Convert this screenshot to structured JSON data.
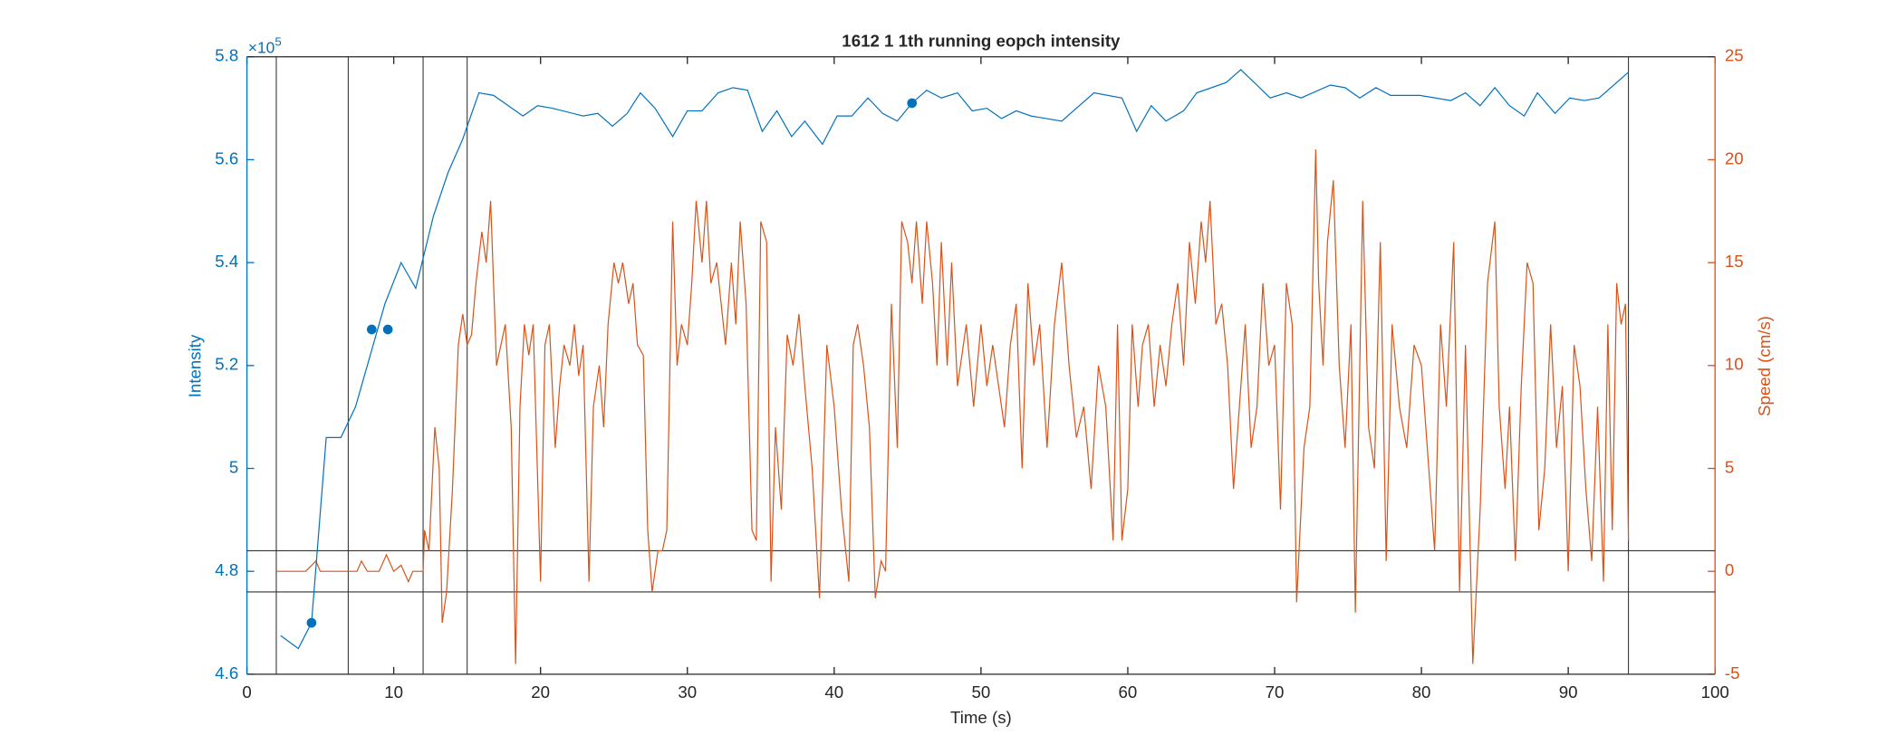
{
  "chart_data": {
    "type": "line",
    "title": "1612 1 1th running eopch intensity",
    "xlabel": "Time (s)",
    "ylabel": "Intensity",
    "y2label": "Speed (cm/s)",
    "y_scale_label": {
      "base": "×10",
      "power": "5"
    },
    "xlim": [
      0,
      100
    ],
    "xticks": [
      0,
      10,
      20,
      30,
      40,
      50,
      60,
      70,
      80,
      90,
      100
    ],
    "ylim": [
      4.6,
      5.8
    ],
    "yticks": [
      4.6,
      4.8,
      5,
      5.2,
      5.4,
      5.6,
      5.8
    ],
    "y2lim": [
      -5,
      25
    ],
    "y2ticks": [
      -5,
      0,
      5,
      10,
      15,
      20,
      25
    ],
    "y_color": "#0072BD",
    "y2_color": "#D95319",
    "vlines": [
      2.0,
      6.9,
      12.0,
      15.0,
      94.1
    ],
    "hlines_y2": [
      1,
      -1
    ],
    "series": [
      {
        "color": "#D95319",
        "axis": "y2",
        "x": [
          2,
          4,
          4.7,
          5,
          7.5,
          7.8,
          8.2,
          9,
          9.5,
          10,
          10.5,
          11,
          11.3,
          12,
          12.1,
          12.4,
          12.8,
          13.1,
          13.3,
          13.6,
          14,
          14.4,
          14.7,
          15,
          15.3,
          15.6,
          16,
          16.3,
          16.6,
          17,
          17.3,
          17.6,
          18,
          18.3,
          18.6,
          18.9,
          19.2,
          19.5,
          20,
          20.3,
          20.6,
          21,
          21.3,
          21.6,
          22,
          22.3,
          22.6,
          22.9,
          23.3,
          23.6,
          24,
          24.3,
          24.6,
          25,
          25.3,
          25.6,
          26,
          26.3,
          26.6,
          27,
          27.3,
          27.6,
          28,
          28.3,
          28.6,
          29,
          29.3,
          29.6,
          30,
          30.3,
          30.6,
          31,
          31.3,
          31.6,
          32,
          32.3,
          32.6,
          33,
          33.3,
          33.6,
          34,
          34.4,
          34.7,
          35,
          35.4,
          35.7,
          36,
          36.4,
          36.8,
          37.2,
          37.6,
          38,
          38.5,
          39,
          39.5,
          40,
          40.5,
          41,
          41.3,
          41.6,
          42,
          42.4,
          42.8,
          43.2,
          43.5,
          43.9,
          44.3,
          44.6,
          45,
          45.3,
          45.6,
          46,
          46.3,
          46.7,
          47,
          47.3,
          47.7,
          48,
          48.4,
          49,
          49.5,
          50,
          50.4,
          50.8,
          51.2,
          51.6,
          52,
          52.4,
          52.8,
          53.2,
          53.6,
          54,
          54.5,
          55,
          55.5,
          56,
          56.5,
          57,
          57.5,
          58,
          58.5,
          59,
          59.3,
          59.6,
          60,
          60.3,
          60.7,
          61,
          61.4,
          61.8,
          62.2,
          62.6,
          63,
          63.4,
          63.8,
          64.2,
          64.6,
          65,
          65.3,
          65.6,
          66,
          66.4,
          66.8,
          67.2,
          67.6,
          68,
          68.4,
          68.8,
          69.2,
          69.6,
          70,
          70.4,
          70.8,
          71.2,
          71.5,
          72,
          72.4,
          72.8,
          73,
          73.3,
          73.6,
          74,
          74.4,
          74.8,
          75.2,
          75.5,
          76,
          76.4,
          76.8,
          77.2,
          77.6,
          78,
          78.5,
          79,
          79.5,
          80,
          80.5,
          80.9,
          81.3,
          81.7,
          82.2,
          82.6,
          83,
          83.5,
          84,
          84.5,
          85,
          85.3,
          85.7,
          86,
          86.4,
          86.8,
          87.2,
          87.6,
          88,
          88.4,
          88.8,
          89.2,
          89.6,
          90,
          90.4,
          90.8,
          91.2,
          91.6,
          92,
          92.4,
          92.7,
          93,
          93.3,
          93.6,
          93.9,
          94.1
        ],
        "values": [
          0,
          0,
          0.5,
          0,
          0,
          0.5,
          0,
          0,
          0.8,
          0,
          0.3,
          -0.5,
          0,
          0,
          2,
          1,
          7,
          5,
          -2.5,
          -1,
          4,
          11,
          12.5,
          11,
          11.5,
          14,
          16.5,
          15,
          18,
          10,
          11,
          12,
          7,
          -4.5,
          8,
          12,
          10.5,
          12,
          -0.5,
          11,
          12,
          6,
          9,
          11,
          10,
          12,
          9.5,
          11,
          -0.5,
          8,
          10,
          7,
          12,
          15,
          14,
          15,
          13,
          14,
          11,
          10.5,
          2,
          -1,
          1,
          1,
          2,
          17,
          10,
          12,
          11,
          14,
          18,
          15,
          18,
          14,
          15,
          13,
          11,
          15,
          12,
          17,
          13,
          2,
          1.5,
          17,
          16,
          -0.5,
          7,
          3,
          11.5,
          10,
          12.5,
          9,
          5,
          -1.3,
          11,
          8,
          3,
          -0.5,
          11,
          12,
          10,
          7,
          -1.3,
          0.5,
          0,
          13,
          6,
          17,
          16,
          14,
          17,
          13,
          17,
          14,
          10,
          16,
          10,
          15,
          9,
          12,
          8,
          12,
          9,
          11,
          9,
          7,
          11,
          13,
          5,
          14,
          10,
          12,
          6,
          12,
          15,
          10,
          6.5,
          8,
          4,
          10,
          8,
          1.5,
          12,
          1.5,
          4,
          12,
          8,
          11,
          12,
          8,
          11,
          9,
          12,
          14,
          10,
          16,
          13,
          17,
          15,
          18,
          12,
          13,
          10,
          4,
          8,
          12,
          6,
          8,
          14,
          10,
          11,
          3,
          14,
          12,
          -1.5,
          6,
          8,
          20.5,
          14,
          10,
          16,
          19,
          10,
          6,
          12,
          -2,
          18,
          7,
          5,
          16,
          0.5,
          12,
          8,
          6,
          11,
          10,
          5,
          1,
          12,
          8,
          16,
          -1,
          11,
          -4.5,
          3,
          14,
          17,
          8,
          4,
          8,
          0.5,
          9,
          15,
          14,
          2,
          5,
          12,
          6,
          9,
          0,
          11,
          9,
          4,
          0.5,
          8,
          -0.5,
          12,
          2,
          14,
          12,
          13,
          1.5
        ]
      },
      {
        "color": "#0072BD",
        "axis": "y",
        "x": [
          2.3,
          3.5,
          4.4,
          5.4,
          6.4,
          7.4,
          8.4,
          9.4,
          10.5,
          11.5,
          12.7,
          13.7,
          14.7,
          15.8,
          16.8,
          17.8,
          18.8,
          19.8,
          20.8,
          22.9,
          23.9,
          24.9,
          25.9,
          26.8,
          27.8,
          29.0,
          30.0,
          31.0,
          32.1,
          33.1,
          34.1,
          35.1,
          36.1,
          37.1,
          38.0,
          39.2,
          40.2,
          41.2,
          42.3,
          43.3,
          44.3,
          45.3,
          46.3,
          47.3,
          48.4,
          49.4,
          50.4,
          51.4,
          52.4,
          53.4,
          55.5,
          56.5,
          57.7,
          59.6,
          60.6,
          61.6,
          62.6,
          63.8,
          64.7,
          66.7,
          67.7,
          69.7,
          70.8,
          71.8,
          73.8,
          74.8,
          75.8,
          76.9,
          77.9,
          79.9,
          82.0,
          83.0,
          84.0,
          85.0,
          86.0,
          87.0,
          87.9,
          89.1,
          90.1,
          91.1,
          92.1,
          94.1
        ],
        "values": [
          4.675,
          4.65,
          4.7,
          5.06,
          5.06,
          5.12,
          5.22,
          5.32,
          5.4,
          5.35,
          5.49,
          5.575,
          5.64,
          5.73,
          5.725,
          5.705,
          5.685,
          5.705,
          5.7,
          5.685,
          5.69,
          5.665,
          5.69,
          5.73,
          5.7,
          5.645,
          5.695,
          5.695,
          5.73,
          5.74,
          5.735,
          5.655,
          5.695,
          5.645,
          5.675,
          5.63,
          5.685,
          5.685,
          5.72,
          5.69,
          5.675,
          5.71,
          5.735,
          5.72,
          5.73,
          5.695,
          5.7,
          5.68,
          5.695,
          5.685,
          5.675,
          5.7,
          5.73,
          5.72,
          5.655,
          5.705,
          5.675,
          5.695,
          5.73,
          5.75,
          5.775,
          5.72,
          5.73,
          5.72,
          5.745,
          5.74,
          5.72,
          5.74,
          5.725,
          5.725,
          5.715,
          5.73,
          5.705,
          5.74,
          5.705,
          5.685,
          5.73,
          5.69,
          5.72,
          5.715,
          5.72,
          5.77
        ]
      },
      {
        "color": "#0072BD",
        "axis": "y",
        "marker": "o",
        "x": [
          4.4,
          8.5,
          9.6,
          45.3
        ],
        "values": [
          4.7,
          5.27,
          5.27,
          5.71
        ]
      }
    ]
  }
}
